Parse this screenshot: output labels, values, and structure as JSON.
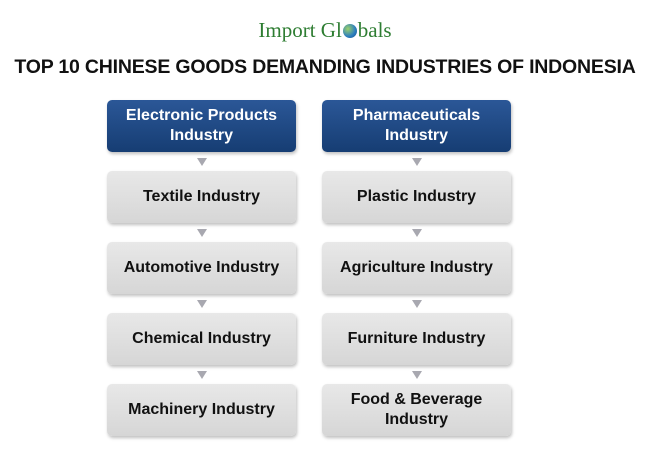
{
  "logo": {
    "part1": "Import Gl",
    "part2": "bals"
  },
  "title": "TOP 10 CHINESE GOODS DEMANDING INDUSTRIES OF INDONESIA",
  "columns": [
    {
      "header": "Electronic Products Industry",
      "items": [
        "Textile Industry",
        "Automotive Industry",
        "Chemical Industry",
        "Machinery Industry"
      ]
    },
    {
      "header": "Pharmaceuticals Industry",
      "items": [
        "Plastic Industry",
        "Agriculture Industry",
        "Furniture Industry",
        "Food & Beverage Industry"
      ]
    }
  ],
  "colors": {
    "header": "#1f4e8a",
    "box": "#dcdcdc",
    "arrow": "#a8a8b0",
    "logo_green": "#2e7d32"
  }
}
